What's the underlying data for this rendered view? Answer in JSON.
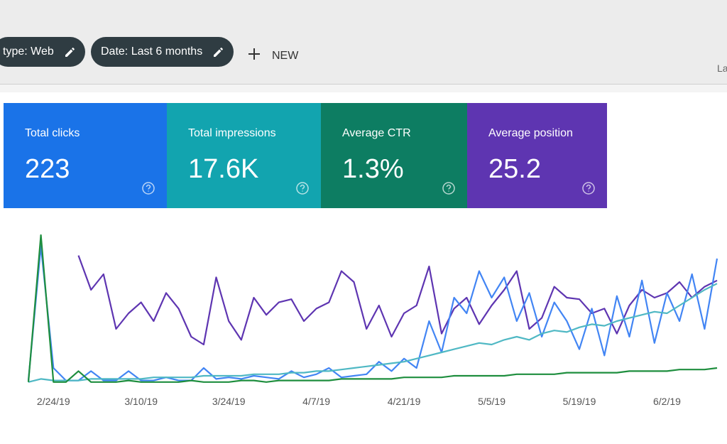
{
  "header": {
    "chips": [
      "type: Web",
      "Date: Last 6 months"
    ],
    "new_button": "NEW",
    "right_label": "La"
  },
  "cards": [
    {
      "title": "Total clicks",
      "value": "223",
      "color": "#1a73e8"
    },
    {
      "title": "Total impressions",
      "value": "17.6K",
      "color": "#12a4af"
    },
    {
      "title": "Average CTR",
      "value": "1.3%",
      "color": "#0d7d62"
    },
    {
      "title": "Average position",
      "value": "25.2",
      "color": "#5e35b1"
    }
  ],
  "chart_data": {
    "type": "line",
    "ylim": [
      0,
      100
    ],
    "categories": [
      null,
      null,
      "2/24/19",
      null,
      null,
      null,
      null,
      null,
      null,
      "3/10/19",
      null,
      null,
      null,
      null,
      null,
      null,
      "3/24/19",
      null,
      null,
      null,
      null,
      null,
      null,
      "4/7/19",
      null,
      null,
      null,
      null,
      null,
      null,
      "4/21/19",
      null,
      null,
      null,
      null,
      null,
      null,
      "5/5/19",
      null,
      null,
      null,
      null,
      null,
      null,
      "5/19/19",
      null,
      null,
      null,
      null,
      null,
      null,
      "6/2/19",
      null,
      null,
      null,
      null
    ],
    "series": [
      {
        "color": "#5e35b1",
        "values": [
          null,
          null,
          null,
          null,
          82,
          60,
          70,
          35,
          45,
          52,
          40,
          58,
          48,
          30,
          25,
          68,
          40,
          28,
          55,
          44,
          52,
          54,
          40,
          48,
          52,
          72,
          65,
          35,
          50,
          30,
          45,
          50,
          75,
          32,
          48,
          55,
          38,
          50,
          60,
          72,
          35,
          42,
          62,
          55,
          54,
          45,
          48,
          32,
          50,
          60,
          55,
          58,
          65,
          55,
          62,
          66
        ]
      },
      {
        "color": "#4285f4",
        "values": [
          2,
          88,
          10,
          2,
          2,
          8,
          2,
          2,
          8,
          2,
          2,
          4,
          2,
          2,
          10,
          3,
          4,
          3,
          5,
          4,
          3,
          8,
          4,
          6,
          10,
          4,
          5,
          6,
          14,
          8,
          16,
          10,
          40,
          20,
          55,
          45,
          72,
          55,
          68,
          40,
          58,
          30,
          52,
          40,
          22,
          48,
          18,
          56,
          30,
          66,
          26,
          58,
          40,
          70,
          35,
          80
        ]
      },
      {
        "color": "#4fb8c4",
        "values": [
          1,
          3,
          2,
          2,
          2,
          3,
          3,
          3,
          3,
          3,
          4,
          4,
          4,
          4,
          5,
          5,
          5,
          5,
          6,
          6,
          6,
          7,
          7,
          8,
          8,
          9,
          10,
          11,
          12,
          13,
          14,
          16,
          18,
          20,
          22,
          24,
          26,
          25,
          28,
          30,
          28,
          32,
          34,
          33,
          36,
          38,
          37,
          40,
          42,
          44,
          46,
          45,
          50,
          55,
          60,
          64
        ]
      },
      {
        "color": "#1e8e3e",
        "values": [
          1,
          95,
          1,
          1,
          8,
          1,
          1,
          1,
          2,
          1,
          1,
          1,
          1,
          2,
          1,
          1,
          1,
          2,
          2,
          1,
          2,
          2,
          2,
          2,
          2,
          3,
          3,
          3,
          3,
          3,
          4,
          4,
          4,
          4,
          5,
          5,
          5,
          5,
          5,
          6,
          6,
          6,
          6,
          7,
          7,
          7,
          7,
          7,
          8,
          8,
          8,
          8,
          9,
          9,
          9,
          10
        ]
      }
    ]
  }
}
